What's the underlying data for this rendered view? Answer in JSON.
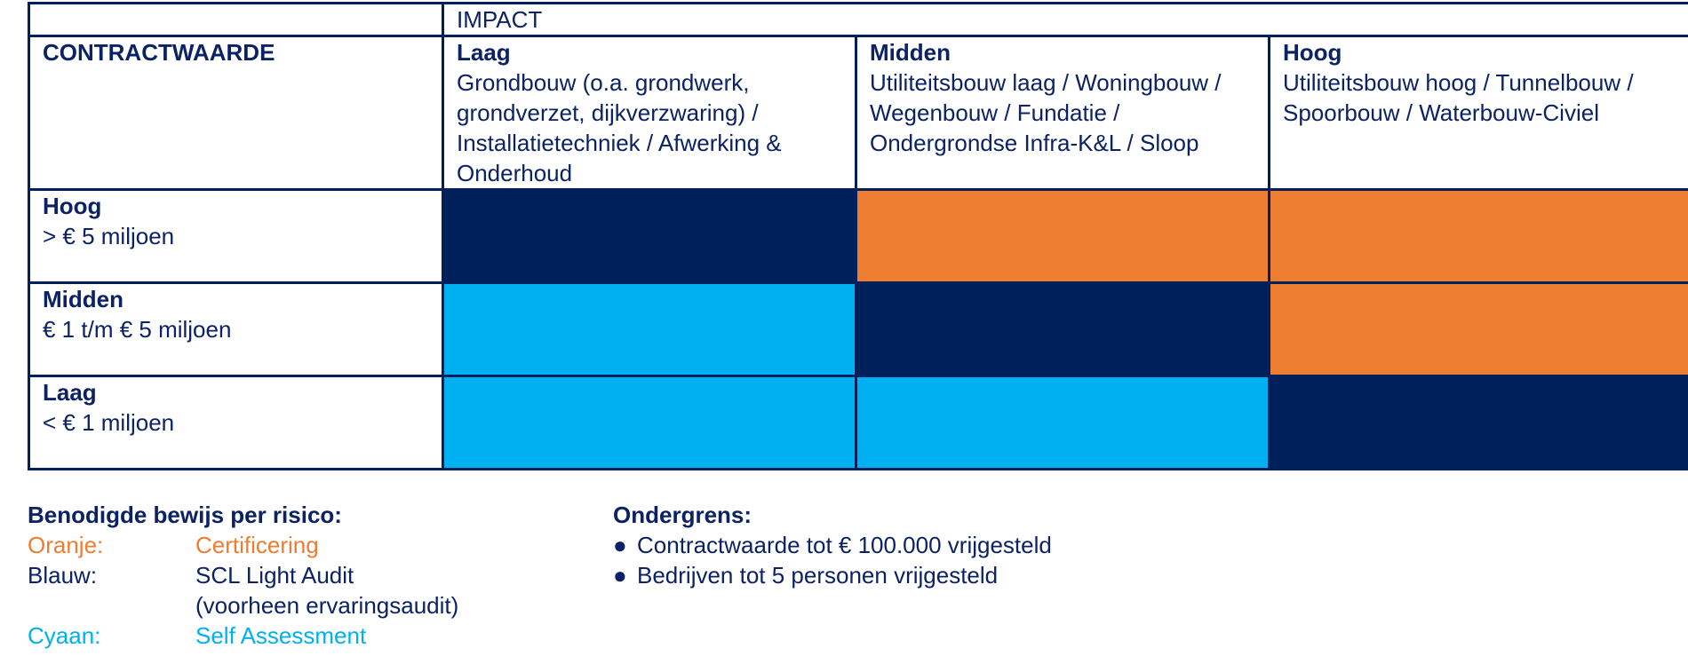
{
  "matrix": {
    "impact_label": "IMPACT",
    "row_axis_label": "CONTRACTWAARDE",
    "columns": [
      {
        "title": "Laag",
        "desc": "Grondbouw (o.a. grondwerk, grondverzet, dijkverzwaring) / Installatietechniek / Afwerking & Onderhoud"
      },
      {
        "title": "Midden",
        "desc": "Utiliteitsbouw laag / Woningbouw / Wegenbouw / Fundatie / Ondergrondse Infra-K&L / Sloop"
      },
      {
        "title": "Hoog",
        "desc": "Utiliteitsbouw hoog / Tunnelbouw / Spoorbouw / Waterbouw-Civiel"
      }
    ],
    "rows": [
      {
        "title": "Hoog",
        "desc": "> € 5 miljoen",
        "cells": [
          "navy",
          "orange",
          "orange"
        ]
      },
      {
        "title": "Midden",
        "desc": "€ 1 t/m € 5 miljoen",
        "cells": [
          "cyan",
          "navy",
          "orange"
        ]
      },
      {
        "title": "Laag",
        "desc": "< € 1 miljoen",
        "cells": [
          "cyan",
          "cyan",
          "navy"
        ]
      }
    ],
    "colors": {
      "navy": "#00205b",
      "orange": "#ed7d31",
      "cyan": "#00b0f0"
    }
  },
  "legend": {
    "title": "Benodigde bewijs per risico:",
    "items": [
      {
        "key": "Oranje:",
        "value": "Certificering",
        "value_line2": ""
      },
      {
        "key": "Blauw:",
        "value": "SCL Light Audit",
        "value_line2": "(voorheen ervaringsaudit)"
      },
      {
        "key": "Cyaan:",
        "value": "Self Assessment",
        "value_line2": ""
      }
    ]
  },
  "floor": {
    "title": "Ondergrens:",
    "bullet_char": "●",
    "items": [
      "Contractwaarde tot € 100.000 vrijgesteld",
      "Bedrijven tot 5 personen vrijgesteld"
    ]
  }
}
